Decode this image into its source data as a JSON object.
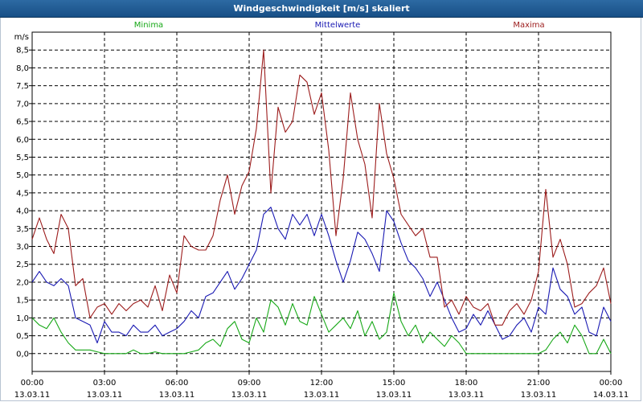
{
  "window": {
    "title": "Windgeschwindigkeit [m/s] skaliert"
  },
  "chart_data": {
    "type": "line",
    "title": "Windgeschwindigkeit [m/s] skaliert",
    "ylabel": "m/s",
    "xlabel": "",
    "ylim": [
      -0.5,
      9.0
    ],
    "xlim": [
      0,
      24
    ],
    "y_ticks": [
      0.0,
      0.5,
      1.0,
      1.5,
      2.0,
      2.5,
      3.0,
      3.5,
      4.0,
      4.5,
      5.0,
      5.5,
      6.0,
      6.5,
      7.0,
      7.5,
      8.0,
      8.5
    ],
    "y_tick_labels": [
      "0,0",
      "0,5",
      "1,0",
      "1,5",
      "2,0",
      "2,5",
      "3,0",
      "3,5",
      "4,0",
      "4,5",
      "5,0",
      "5,5",
      "6,0",
      "6,5",
      "7,0",
      "7,5",
      "8,0",
      "8,5"
    ],
    "x_ticks": [
      {
        "x": 0,
        "time": "00:00",
        "date": "13.03.11"
      },
      {
        "x": 3,
        "time": "03:00",
        "date": "13.03.11"
      },
      {
        "x": 6,
        "time": "06:00",
        "date": "13.03.11"
      },
      {
        "x": 9,
        "time": "09:00",
        "date": "13.03.11"
      },
      {
        "x": 12,
        "time": "12:00",
        "date": "13.03.11"
      },
      {
        "x": 15,
        "time": "15:00",
        "date": "13.03.11"
      },
      {
        "x": 18,
        "time": "18:00",
        "date": "13.03.11"
      },
      {
        "x": 21,
        "time": "21:00",
        "date": "13.03.11"
      },
      {
        "x": 24,
        "time": "00:00",
        "date": "14.03.11"
      }
    ],
    "grid": true,
    "series": [
      {
        "name": "Minima",
        "color": "#17a817",
        "x": [
          0,
          0.3,
          0.6,
          0.9,
          1.2,
          1.5,
          1.8,
          2.1,
          2.4,
          2.7,
          3.0,
          3.3,
          3.6,
          3.9,
          4.2,
          4.5,
          4.8,
          5.1,
          5.4,
          5.7,
          6.0,
          6.3,
          6.6,
          6.9,
          7.2,
          7.5,
          7.8,
          8.1,
          8.4,
          8.7,
          9.0,
          9.3,
          9.6,
          9.9,
          10.2,
          10.5,
          10.8,
          11.1,
          11.4,
          11.7,
          12.0,
          12.3,
          12.6,
          12.9,
          13.2,
          13.5,
          13.8,
          14.1,
          14.4,
          14.7,
          15.0,
          15.3,
          15.6,
          15.9,
          16.2,
          16.5,
          16.8,
          17.1,
          17.4,
          17.7,
          18.0,
          18.3,
          18.6,
          18.9,
          19.2,
          19.5,
          19.8,
          20.1,
          20.4,
          20.7,
          21.0,
          21.3,
          21.6,
          21.9,
          22.2,
          22.5,
          22.8,
          23.1,
          23.4,
          23.7,
          24.0
        ],
        "values": [
          1.0,
          0.8,
          0.7,
          1.0,
          0.6,
          0.3,
          0.1,
          0.1,
          0.1,
          0.05,
          0.0,
          0.0,
          0.0,
          0.0,
          0.1,
          0.0,
          0.0,
          0.05,
          0.0,
          0.0,
          0.0,
          0.0,
          0.05,
          0.1,
          0.3,
          0.4,
          0.2,
          0.7,
          0.9,
          0.4,
          0.3,
          1.0,
          0.6,
          1.5,
          1.3,
          0.8,
          1.4,
          0.9,
          0.8,
          1.6,
          1.1,
          0.6,
          0.8,
          1.0,
          0.7,
          1.2,
          0.5,
          0.9,
          0.4,
          0.6,
          1.7,
          0.9,
          0.5,
          0.8,
          0.3,
          0.6,
          0.4,
          0.2,
          0.5,
          0.3,
          0.0,
          0.0,
          0.0,
          0.0,
          0.0,
          0.0,
          0.0,
          0.0,
          0.0,
          0.0,
          0.0,
          0.1,
          0.4,
          0.6,
          0.3,
          0.8,
          0.5,
          0.0,
          0.0,
          0.4,
          0.0
        ]
      },
      {
        "name": "Mittelwerte",
        "color": "#1a1ab3",
        "x": [
          0,
          0.3,
          0.6,
          0.9,
          1.2,
          1.5,
          1.8,
          2.1,
          2.4,
          2.7,
          3.0,
          3.3,
          3.6,
          3.9,
          4.2,
          4.5,
          4.8,
          5.1,
          5.4,
          5.7,
          6.0,
          6.3,
          6.6,
          6.9,
          7.2,
          7.5,
          7.8,
          8.1,
          8.4,
          8.7,
          9.0,
          9.3,
          9.6,
          9.9,
          10.2,
          10.5,
          10.8,
          11.1,
          11.4,
          11.7,
          12.0,
          12.3,
          12.6,
          12.9,
          13.2,
          13.5,
          13.8,
          14.1,
          14.4,
          14.7,
          15.0,
          15.3,
          15.6,
          15.9,
          16.2,
          16.5,
          16.8,
          17.1,
          17.4,
          17.7,
          18.0,
          18.3,
          18.6,
          18.9,
          19.2,
          19.5,
          19.8,
          20.1,
          20.4,
          20.7,
          21.0,
          21.3,
          21.6,
          21.9,
          22.2,
          22.5,
          22.8,
          23.1,
          23.4,
          23.7,
          24.0
        ],
        "values": [
          2.0,
          2.3,
          2.0,
          1.9,
          2.1,
          1.9,
          1.0,
          0.9,
          0.8,
          0.3,
          0.9,
          0.6,
          0.6,
          0.5,
          0.8,
          0.6,
          0.6,
          0.8,
          0.5,
          0.6,
          0.7,
          0.9,
          1.2,
          1.0,
          1.6,
          1.7,
          2.0,
          2.3,
          1.8,
          2.1,
          2.5,
          2.9,
          3.9,
          4.1,
          3.5,
          3.2,
          3.9,
          3.6,
          3.9,
          3.3,
          3.9,
          3.3,
          2.6,
          2.0,
          2.6,
          3.4,
          3.2,
          2.8,
          2.3,
          4.0,
          3.7,
          3.1,
          2.6,
          2.4,
          2.1,
          1.6,
          2.0,
          1.5,
          1.0,
          0.6,
          0.7,
          1.1,
          0.8,
          1.2,
          0.8,
          0.4,
          0.5,
          0.8,
          1.0,
          0.6,
          1.3,
          1.1,
          2.4,
          1.8,
          1.6,
          1.1,
          1.3,
          0.6,
          0.5,
          1.3,
          0.9
        ]
      },
      {
        "name": "Maxima",
        "color": "#9c1c1c",
        "x": [
          0,
          0.3,
          0.6,
          0.9,
          1.2,
          1.5,
          1.8,
          2.1,
          2.4,
          2.7,
          3.0,
          3.3,
          3.6,
          3.9,
          4.2,
          4.5,
          4.8,
          5.1,
          5.4,
          5.7,
          6.0,
          6.3,
          6.6,
          6.9,
          7.2,
          7.5,
          7.8,
          8.1,
          8.4,
          8.7,
          9.0,
          9.3,
          9.6,
          9.9,
          10.2,
          10.5,
          10.8,
          11.1,
          11.4,
          11.7,
          12.0,
          12.3,
          12.6,
          12.9,
          13.2,
          13.5,
          13.8,
          14.1,
          14.4,
          14.7,
          15.0,
          15.3,
          15.6,
          15.9,
          16.2,
          16.5,
          16.8,
          17.1,
          17.4,
          17.7,
          18.0,
          18.3,
          18.6,
          18.9,
          19.2,
          19.5,
          19.8,
          20.1,
          20.4,
          20.7,
          21.0,
          21.3,
          21.6,
          21.9,
          22.2,
          22.5,
          22.8,
          23.1,
          23.4,
          23.7,
          24.0
        ],
        "values": [
          3.2,
          3.8,
          3.2,
          2.8,
          3.9,
          3.5,
          1.9,
          2.1,
          1.0,
          1.3,
          1.4,
          1.1,
          1.4,
          1.2,
          1.4,
          1.5,
          1.3,
          1.9,
          1.2,
          2.2,
          1.7,
          3.3,
          3.0,
          2.9,
          2.9,
          3.3,
          4.3,
          5.0,
          3.9,
          4.7,
          5.1,
          6.3,
          8.5,
          4.5,
          6.9,
          6.2,
          6.5,
          7.8,
          7.6,
          6.7,
          7.3,
          5.7,
          3.3,
          4.9,
          7.3,
          6.0,
          5.3,
          3.8,
          7.0,
          5.6,
          4.9,
          3.9,
          3.6,
          3.3,
          3.5,
          2.7,
          2.7,
          1.3,
          1.5,
          1.1,
          1.6,
          1.3,
          1.2,
          1.4,
          0.8,
          0.8,
          1.2,
          1.4,
          1.1,
          1.5,
          2.3,
          4.6,
          2.7,
          3.2,
          2.5,
          1.3,
          1.4,
          1.7,
          1.9,
          2.4,
          1.4
        ]
      }
    ]
  }
}
